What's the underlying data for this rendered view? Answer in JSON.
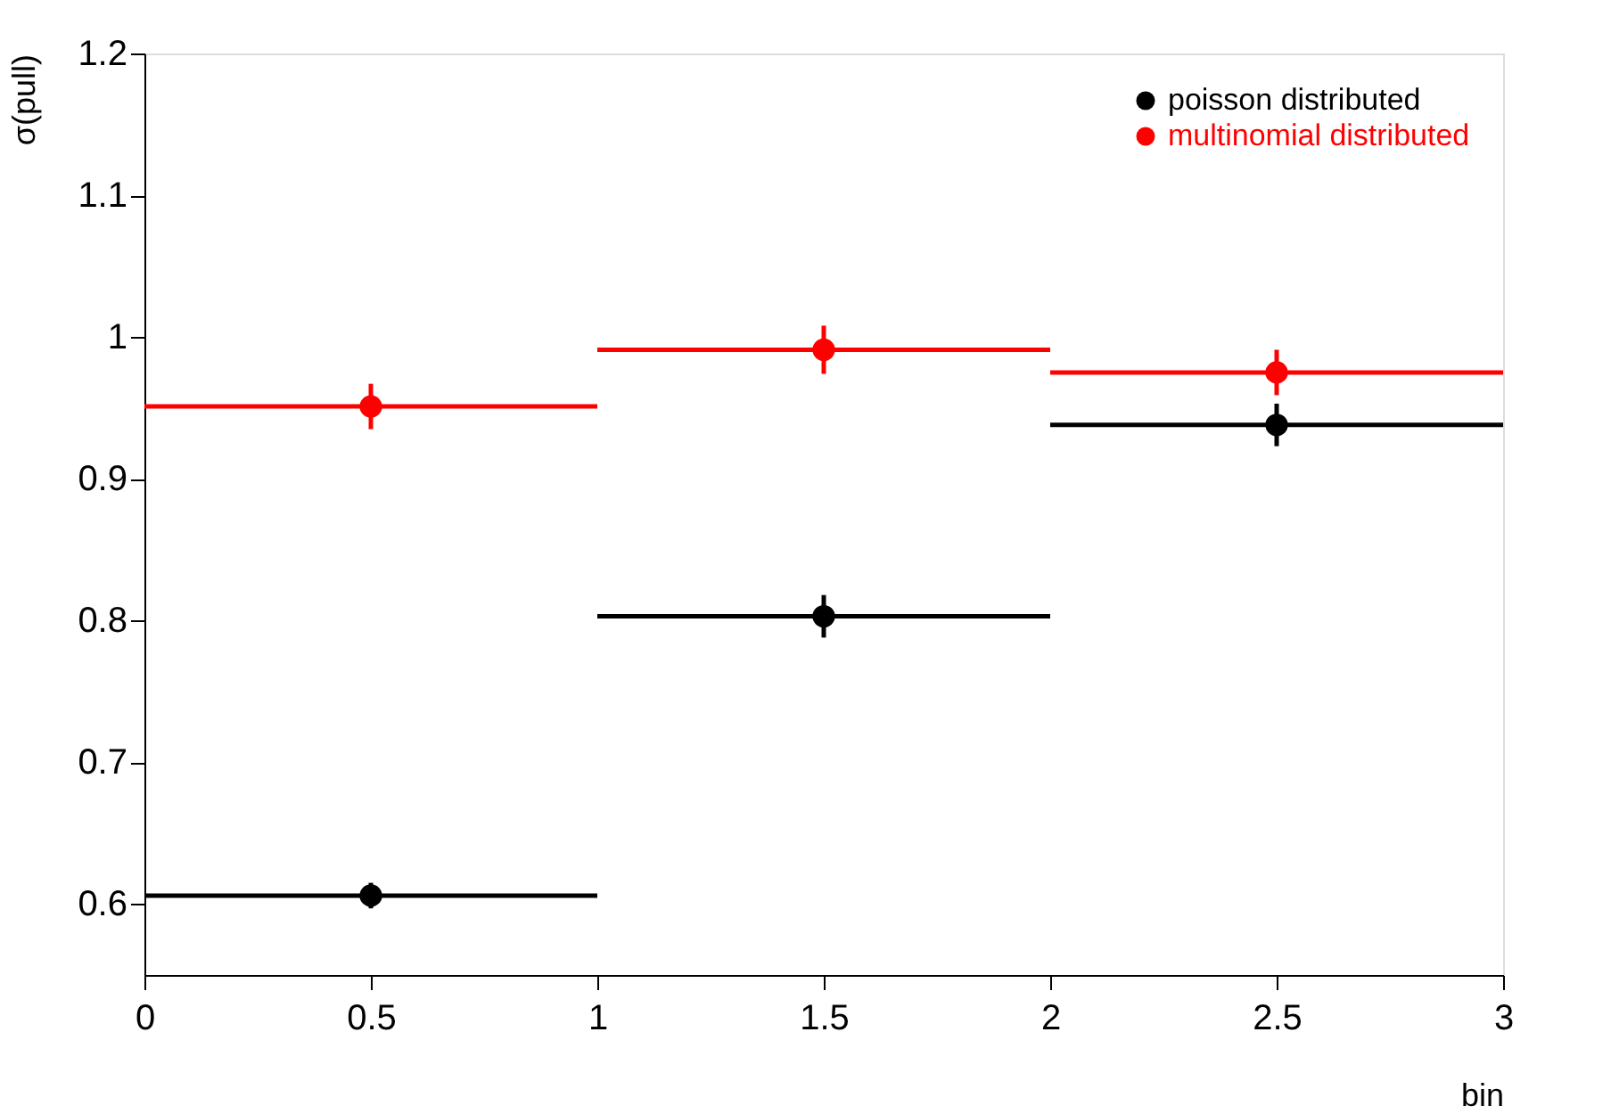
{
  "chart_data": {
    "type": "scatter",
    "xlabel": "bin",
    "ylabel": "σ(pull)",
    "x": [
      0.5,
      1.5,
      2.5
    ],
    "series": [
      {
        "name": "poisson distributed",
        "color": "#000000",
        "values": [
          0.606,
          0.803,
          0.938
        ],
        "errors": [
          0.009,
          0.015,
          0.015
        ],
        "xerrors": [
          0.5,
          0.5,
          0.5
        ]
      },
      {
        "name": "multinomial distributed",
        "color": "#ff0000",
        "values": [
          0.951,
          0.991,
          0.975
        ],
        "errors": [
          0.016,
          0.017,
          0.016
        ],
        "xerrors": [
          0.5,
          0.5,
          0.5
        ]
      }
    ],
    "xlim": [
      0,
      3
    ],
    "xticks": [
      0,
      0.5,
      1,
      1.5,
      2,
      2.5,
      3
    ],
    "ylim": [
      0.55,
      1.2
    ],
    "yticks": [
      0.6,
      0.7,
      0.8,
      0.9,
      1,
      1.1,
      1.2
    ],
    "marker": "circle",
    "grid": false,
    "legend": "top right"
  }
}
